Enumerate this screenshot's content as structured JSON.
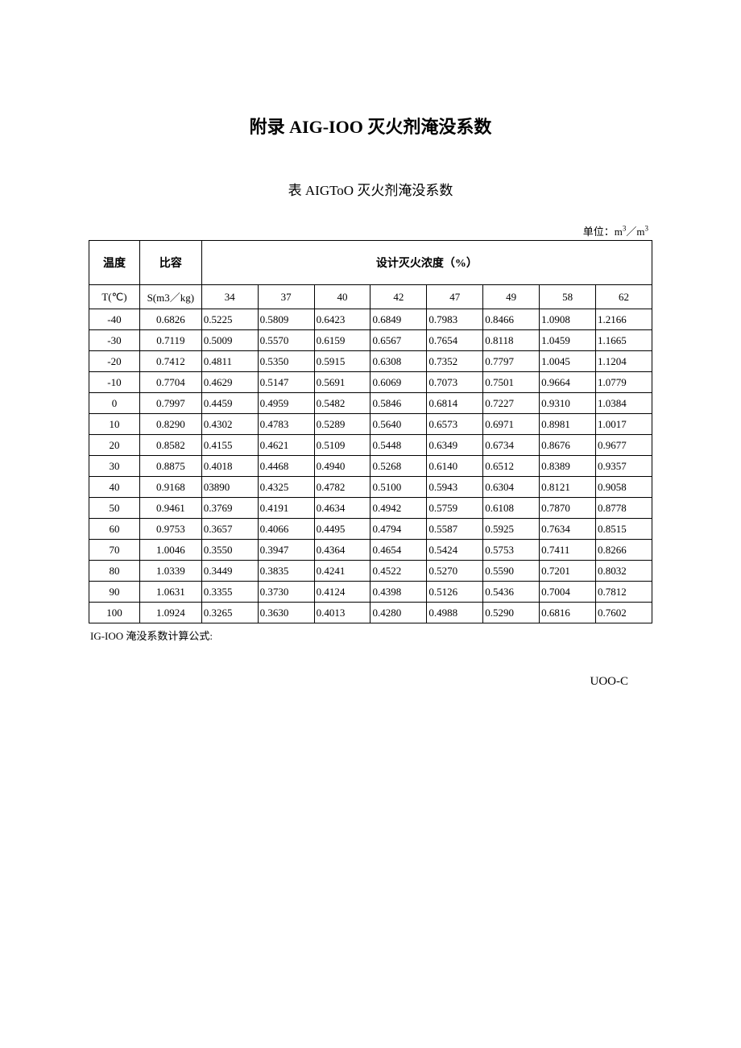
{
  "title": "附录 AIG-IOO 灭火剂淹没系数",
  "subtitle": "表 AIGToO 灭火剂淹没系数",
  "unit_label_prefix": "单位：m",
  "unit_label_sup1": "3",
  "unit_label_mid": "／m",
  "unit_label_sup2": "3",
  "table": {
    "type": "table",
    "background_color": "#ffffff",
    "border_color": "#000000",
    "header1_col1": "温度",
    "header1_col2": "比容",
    "header1_span": "设计灭火浓度（%）",
    "header2_col1": "T(℃)",
    "header2_col2": "S(m3／kg)",
    "concentration_columns": [
      "34",
      "37",
      "40",
      "42",
      "47",
      "49",
      "58",
      "62"
    ],
    "rows": [
      {
        "t": "-40",
        "s": "0.6826",
        "v": [
          "0.5225",
          "0.5809",
          "0.6423",
          "0.6849",
          "0.7983",
          "0.8466",
          "1.0908",
          "1.2166"
        ]
      },
      {
        "t": "-30",
        "s": "0.7119",
        "v": [
          "0.5009",
          "0.5570",
          "0.6159",
          "0.6567",
          "0.7654",
          "0.8118",
          "1.0459",
          "1.1665"
        ]
      },
      {
        "t": "-20",
        "s": "0.7412",
        "v": [
          "0.4811",
          "0.5350",
          "0.5915",
          "0.6308",
          "0.7352",
          "0.7797",
          "1.0045",
          "1.1204"
        ]
      },
      {
        "t": "-10",
        "s": "0.7704",
        "v": [
          "0.4629",
          "0.5147",
          "0.5691",
          "0.6069",
          "0.7073",
          "0.7501",
          "0.9664",
          "1.0779"
        ]
      },
      {
        "t": "0",
        "s": "0.7997",
        "v": [
          "0.4459",
          "0.4959",
          "0.5482",
          "0.5846",
          "0.6814",
          "0.7227",
          "0.9310",
          "1.0384"
        ]
      },
      {
        "t": "10",
        "s": "0.8290",
        "v": [
          "0.4302",
          "0.4783",
          "0.5289",
          "0.5640",
          "0.6573",
          "0.6971",
          "0.8981",
          "1.0017"
        ]
      },
      {
        "t": "20",
        "s": "0.8582",
        "v": [
          "0.4155",
          "0.4621",
          "0.5109",
          "0.5448",
          "0.6349",
          "0.6734",
          "0.8676",
          "0.9677"
        ]
      },
      {
        "t": "30",
        "s": "0.8875",
        "v": [
          "0.4018",
          "0.4468",
          "0.4940",
          "0.5268",
          "0.6140",
          "0.6512",
          "0.8389",
          "0.9357"
        ]
      },
      {
        "t": "40",
        "s": "0.9168",
        "v": [
          "03890",
          "0.4325",
          "0.4782",
          "0.5100",
          "0.5943",
          "0.6304",
          "0.8121",
          "0.9058"
        ]
      },
      {
        "t": "50",
        "s": "0.9461",
        "v": [
          "0.3769",
          "0.4191",
          "0.4634",
          "0.4942",
          "0.5759",
          "0.6108",
          "0.7870",
          "0.8778"
        ]
      },
      {
        "t": "60",
        "s": "0.9753",
        "v": [
          "0.3657",
          "0.4066",
          "0.4495",
          "0.4794",
          "0.5587",
          "0.5925",
          "0.7634",
          "0.8515"
        ]
      },
      {
        "t": "70",
        "s": "1.0046",
        "v": [
          "0.3550",
          "0.3947",
          "0.4364",
          "0.4654",
          "0.5424",
          "0.5753",
          "0.7411",
          "0.8266"
        ]
      },
      {
        "t": "80",
        "s": "1.0339",
        "v": [
          "0.3449",
          "0.3835",
          "0.4241",
          "0.4522",
          "0.5270",
          "0.5590",
          "0.7201",
          "0.8032"
        ]
      },
      {
        "t": "90",
        "s": "1.0631",
        "v": [
          "0.3355",
          "0.3730",
          "0.4124",
          "0.4398",
          "0.5126",
          "0.5436",
          "0.7004",
          "0.7812"
        ]
      },
      {
        "t": "100",
        "s": "1.0924",
        "v": [
          "0.3265",
          "0.3630",
          "0.4013",
          "0.4280",
          "0.4988",
          "0.5290",
          "0.6816",
          "0.7602"
        ]
      }
    ]
  },
  "footnote": "IG-IOO 淹没系数计算公式:",
  "bottom_code": "UOO-C"
}
